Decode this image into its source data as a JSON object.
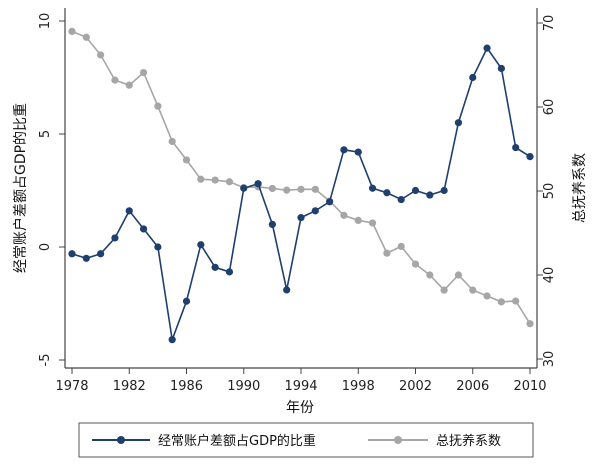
{
  "chart_data": {
    "type": "line",
    "xlabel": "年份",
    "ylabel_left": "经常账户差额占GDP的比重",
    "ylabel_right": "总抚养系数",
    "xlim": [
      1978,
      2010
    ],
    "x_ticks": [
      1978,
      1982,
      1986,
      1990,
      1994,
      1998,
      2002,
      2006,
      2010
    ],
    "ylim_left": [
      -5,
      10
    ],
    "y_ticks_left": [
      -5,
      0,
      5,
      10
    ],
    "ylim_right": [
      30,
      70
    ],
    "y_ticks_right": [
      30,
      40,
      50,
      60,
      70
    ],
    "x": [
      1978,
      1979,
      1980,
      1981,
      1982,
      1983,
      1984,
      1985,
      1986,
      1987,
      1988,
      1989,
      1990,
      1991,
      1992,
      1993,
      1994,
      1995,
      1996,
      1997,
      1998,
      1999,
      2000,
      2001,
      2002,
      2003,
      2004,
      2005,
      2006,
      2007,
      2008,
      2009,
      2010
    ],
    "series": [
      {
        "name": "经常账户差额占GDP的比重",
        "axis": "left",
        "color": "#1f3f6e",
        "values": [
          -0.3,
          -0.5,
          -0.3,
          0.4,
          1.6,
          0.8,
          0,
          -4.1,
          -2.4,
          0.1,
          -0.9,
          -1.1,
          2.6,
          2.8,
          1,
          -1.9,
          1.3,
          1.6,
          2,
          4.3,
          4.2,
          2.6,
          2.4,
          2.1,
          2.5,
          2.3,
          2.5,
          5.5,
          7.5,
          8.8,
          7.9,
          4.4,
          4
        ]
      },
      {
        "name": "总抚养系数",
        "axis": "right",
        "color": "#a6a6a6",
        "values": [
          69,
          68.3,
          66.2,
          63.2,
          62.6,
          64.1,
          60.1,
          55.9,
          53.7,
          51.4,
          51.3,
          51.1,
          50.4,
          50.5,
          50.3,
          50.1,
          50.2,
          50.2,
          48.8,
          47.1,
          46.5,
          46.2,
          42.6,
          43.4,
          41.3,
          40,
          38.2,
          40,
          38.2,
          37.5,
          36.8,
          36.9,
          34.2
        ]
      }
    ],
    "legend_position": "bottom"
  }
}
